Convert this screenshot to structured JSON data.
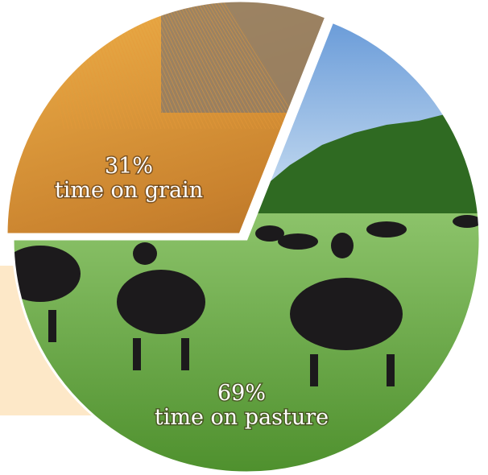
{
  "chart_data": {
    "type": "pie",
    "categories": [
      "time on grain",
      "time on pasture"
    ],
    "values": [
      31,
      69
    ],
    "value_labels": [
      "31%",
      "69%"
    ],
    "colors": [
      "#c9822e",
      "#5f9e3a"
    ]
  }
}
